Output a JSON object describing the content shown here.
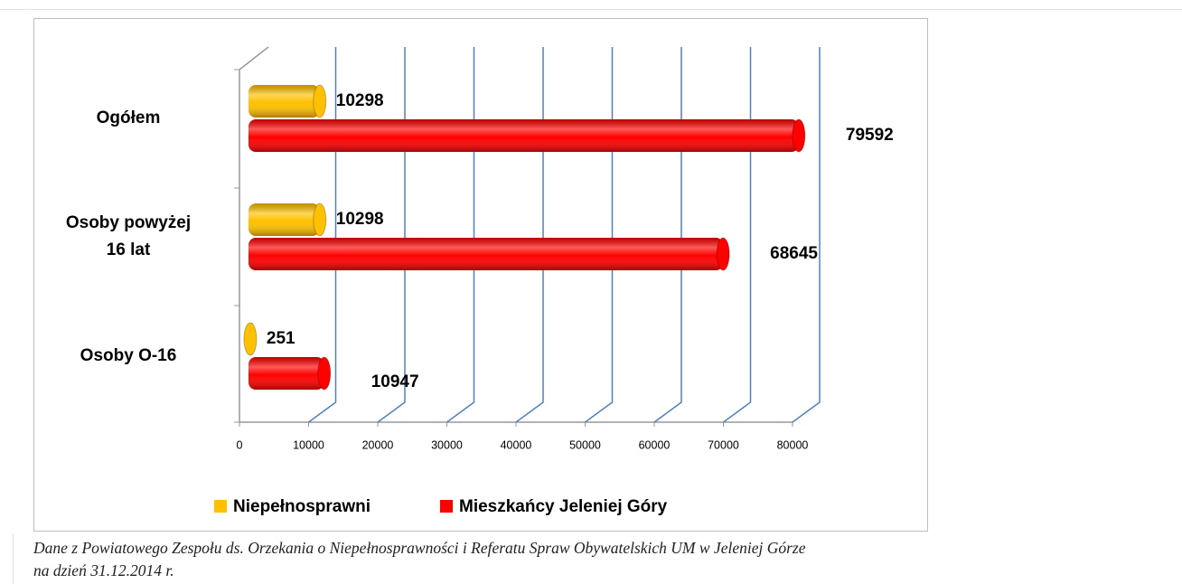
{
  "chart_data": {
    "type": "bar",
    "orientation": "horizontal",
    "categories": [
      "Ogółem",
      "Osoby powyżej\n16 lat",
      "Osoby  O-16"
    ],
    "series": [
      {
        "name": "Niepełnosprawni",
        "color": "#ffc000",
        "values": [
          10298,
          10298,
          251
        ]
      },
      {
        "name": "Mieszkańcy Jeleniej Góry",
        "color": "#ff0000",
        "values": [
          79592,
          68645,
          10947
        ]
      }
    ],
    "xlim": [
      0,
      80000
    ],
    "xticks": [
      0,
      10000,
      20000,
      30000,
      40000,
      50000,
      60000,
      70000,
      80000
    ],
    "grid": true,
    "legend": "bottom"
  },
  "caption": [
    "Dane z Powiatowego Zespołu ds. Orzekania o Niepełnosprawności i Referatu Spraw Obywatelskich UM w Jeleniej Górze",
    "na dzień 31.12.2014 r."
  ]
}
